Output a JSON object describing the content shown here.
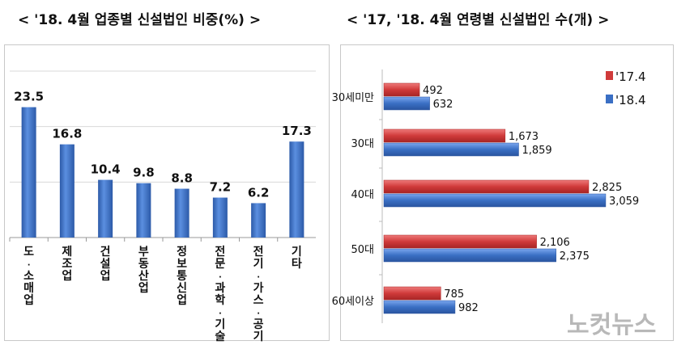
{
  "titles": {
    "left": "< '18. 4월 업종별 신설법인 비중(%) >",
    "right": "< '17, '18. 4월 연령별 신설법인 수(개) >"
  },
  "watermark": "노컷뉴스",
  "colors": {
    "blue": "#3a6fc4",
    "red": "#d03a3a"
  },
  "chart_data": [
    {
      "type": "bar",
      "title": "'18. 4월 업종별 신설법인 비중(%)",
      "categories": [
        "도·소매업",
        "제조업",
        "건설업",
        "부동산업",
        "정보통신업",
        "전문·과학·기술",
        "전기·가스·공기",
        "기타"
      ],
      "values": [
        23.5,
        16.8,
        10.4,
        9.8,
        8.8,
        7.2,
        6.2,
        17.3
      ],
      "value_labels": [
        "23.5",
        "16.8",
        "10.4",
        "9.8",
        "8.8",
        "7.2",
        "6.2",
        "17.3"
      ],
      "ylim": [
        0,
        30
      ],
      "grid": true
    },
    {
      "type": "bar",
      "orientation": "horizontal",
      "title": "'17, '18. 4월 연령별 신설법인 수(개)",
      "categories": [
        "30세미만",
        "30대",
        "40대",
        "50대",
        "60세이상"
      ],
      "series": [
        {
          "name": "'17.4",
          "values": [
            492,
            1673,
            2825,
            2106,
            785
          ],
          "labels": [
            "492",
            "1,673",
            "2,825",
            "2,106",
            "785"
          ]
        },
        {
          "name": "'18.4",
          "values": [
            632,
            1859,
            3059,
            2375,
            982
          ],
          "labels": [
            "632",
            "1,859",
            "3,059",
            "2,375",
            "982"
          ]
        }
      ],
      "xlim": [
        0,
        3500
      ],
      "legend": "top-right"
    }
  ]
}
